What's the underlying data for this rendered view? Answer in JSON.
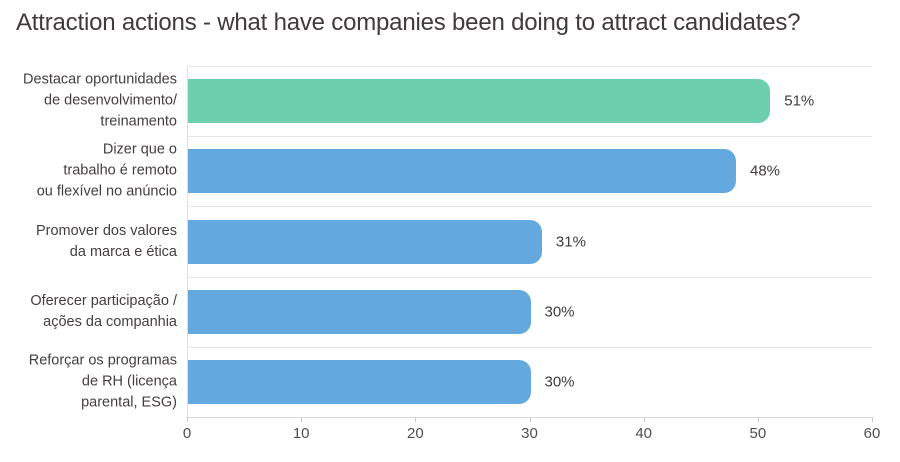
{
  "title": "Attraction actions - what have companies been doing to attract candidates?",
  "colors": {
    "highlight_bar": "#6ecfae",
    "default_bar": "#64a8e0",
    "title_text": "#403a3c",
    "label_text": "#433e3f",
    "tick_text": "#4f4f4f",
    "grid_line": "#e6e6e6"
  },
  "chart_data": {
    "type": "bar",
    "orientation": "horizontal",
    "title": "Attraction actions - what have companies been doing to attract candidates?",
    "categories": [
      "Destacar oportunidades de desenvolvimento/ treinamento",
      "Dizer que o trabalho é remoto ou flexível no anúncio",
      "Promover dos valores da marca e ética",
      "Oferecer participação / ações da companhia",
      "Reforçar os programas de RH (licença parental, ESG)"
    ],
    "category_lines": [
      [
        "Destacar oportunidades",
        "de desenvolvimento/",
        "treinamento"
      ],
      [
        "Dizer que o",
        "trabalho é remoto",
        "ou flexível no anúncio"
      ],
      [
        "Promover dos valores",
        "da marca e ética"
      ],
      [
        "Oferecer participação /",
        "ações da companhia"
      ],
      [
        "Reforçar os programas",
        "de RH (licença",
        "parental, ESG)"
      ]
    ],
    "values": [
      51,
      48,
      31,
      30,
      30
    ],
    "value_labels": [
      "51%",
      "48%",
      "31%",
      "30%",
      "30%"
    ],
    "bar_colors": [
      "#6ecfae",
      "#64a8e0",
      "#64a8e0",
      "#64a8e0",
      "#64a8e0"
    ],
    "xlabel": "",
    "ylabel": "",
    "xlim": [
      0,
      60
    ],
    "x_ticks": [
      "0",
      "10",
      "20",
      "30",
      "40",
      "50",
      "60"
    ],
    "grid": "horizontal row separators, left vertical axis line",
    "legend": "none"
  }
}
